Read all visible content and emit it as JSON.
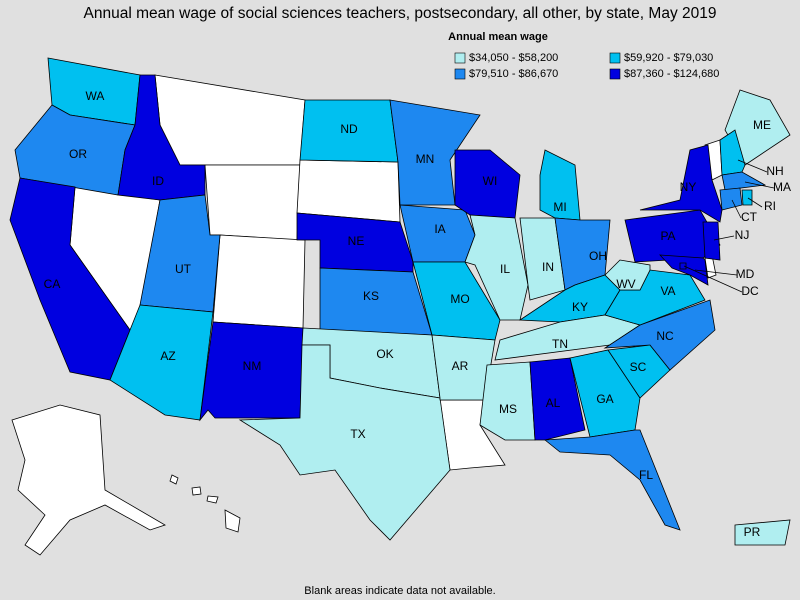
{
  "title": "Annual mean wage of social sciences teachers, postsecondary, all other, by state, May 2019",
  "legend": {
    "title": "Annual mean wage",
    "items": [
      {
        "label": "$34,050 - $58,200",
        "color": "#b0eef0"
      },
      {
        "label": "$59,920 - $79,030",
        "color": "#00c0f0"
      },
      {
        "label": "$79,510 - $86,670",
        "color": "#1e88f0"
      },
      {
        "label": "$87,360 - $124,680",
        "color": "#0000e0"
      }
    ]
  },
  "states": [
    {
      "label": "WA",
      "bin": 1
    },
    {
      "label": "OR",
      "bin": 2
    },
    {
      "label": "CA",
      "bin": 3
    },
    {
      "label": "ID",
      "bin": 3
    },
    {
      "label": "UT",
      "bin": 2
    },
    {
      "label": "AZ",
      "bin": 1
    },
    {
      "label": "NM",
      "bin": 3
    },
    {
      "label": "ND",
      "bin": 1
    },
    {
      "label": "NE",
      "bin": 3
    },
    {
      "label": "KS",
      "bin": 2
    },
    {
      "label": "OK",
      "bin": 0
    },
    {
      "label": "TX",
      "bin": 0
    },
    {
      "label": "MN",
      "bin": 2
    },
    {
      "label": "IA",
      "bin": 2
    },
    {
      "label": "MO",
      "bin": 1
    },
    {
      "label": "AR",
      "bin": 0
    },
    {
      "label": "WI",
      "bin": 3
    },
    {
      "label": "IL",
      "bin": 0
    },
    {
      "label": "IN",
      "bin": 0
    },
    {
      "label": "MI",
      "bin": 1
    },
    {
      "label": "OH",
      "bin": 2
    },
    {
      "label": "KY",
      "bin": 1
    },
    {
      "label": "TN",
      "bin": 0
    },
    {
      "label": "MS",
      "bin": 0
    },
    {
      "label": "AL",
      "bin": 3
    },
    {
      "label": "GA",
      "bin": 1
    },
    {
      "label": "FL",
      "bin": 2
    },
    {
      "label": "SC",
      "bin": 1
    },
    {
      "label": "NC",
      "bin": 2
    },
    {
      "label": "VA",
      "bin": 1
    },
    {
      "label": "WV",
      "bin": 0
    },
    {
      "label": "PA",
      "bin": 3
    },
    {
      "label": "NY",
      "bin": 3
    },
    {
      "label": "ME",
      "bin": 0
    },
    {
      "label": "NH",
      "bin": 1
    },
    {
      "label": "MA",
      "bin": 2
    },
    {
      "label": "CT",
      "bin": 2
    },
    {
      "label": "RI",
      "bin": 1
    },
    {
      "label": "NJ",
      "bin": 3
    },
    {
      "label": "MD",
      "bin": 3
    },
    {
      "label": "DC",
      "bin": 3
    },
    {
      "label": "PR",
      "bin": 0
    }
  ],
  "footnote": "Blank areas indicate data not available."
}
